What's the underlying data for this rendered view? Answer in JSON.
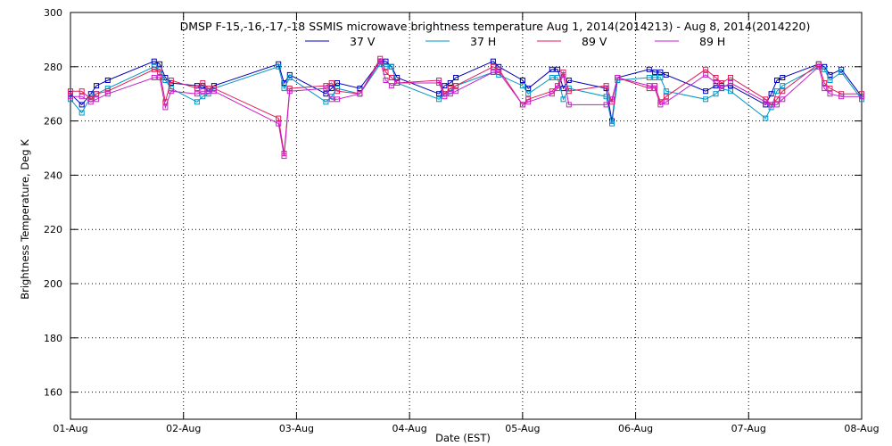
{
  "chart_data": {
    "type": "line",
    "title": "DMSP F-15,-16,-17,-18 SSMIS microwave brightness temperature Aug  1, 2014(2014213) - Aug  8, 2014(2014220)",
    "xlabel": "Date (EST)",
    "ylabel": "Brightness Temperature, Deg K",
    "xlim": [
      0,
      7
    ],
    "ylim": [
      150,
      300
    ],
    "grid": true,
    "legend_position": "top-center",
    "x_tick_labels": [
      "01-Aug",
      "02-Aug",
      "03-Aug",
      "04-Aug",
      "05-Aug",
      "06-Aug",
      "07-Aug",
      "08-Aug"
    ],
    "y_ticks": [
      160,
      180,
      200,
      220,
      240,
      260,
      280,
      300
    ],
    "series": [
      {
        "name": "37 V",
        "color": "#0000b4",
        "x": [
          0.0,
          0.1,
          0.18,
          0.23,
          0.33,
          0.74,
          0.79,
          0.84,
          0.89,
          1.12,
          1.17,
          1.22,
          1.27,
          1.84,
          1.89,
          1.94,
          2.26,
          2.31,
          2.36,
          2.56,
          2.74,
          2.79,
          2.84,
          2.89,
          3.26,
          3.31,
          3.36,
          3.41,
          3.74,
          3.79,
          4.0,
          4.05,
          4.26,
          4.31,
          4.36,
          4.41,
          4.74,
          4.79,
          4.84,
          5.12,
          5.17,
          5.22,
          5.27,
          5.62,
          5.71,
          5.76,
          5.84,
          6.15,
          6.2,
          6.25,
          6.3,
          6.62,
          6.67,
          6.72,
          6.82,
          7.0
        ],
        "values": [
          270,
          266,
          270,
          273,
          275,
          282,
          281,
          276,
          274,
          273,
          273,
          271,
          273,
          281,
          274,
          277,
          270,
          272,
          274,
          272,
          282,
          282,
          280,
          276,
          270,
          273,
          274,
          276,
          282,
          280,
          275,
          272,
          279,
          279,
          272,
          275,
          272,
          260,
          276,
          279,
          278,
          278,
          277,
          271,
          273,
          273,
          273,
          266,
          270,
          275,
          276,
          281,
          280,
          277,
          279,
          269
        ]
      },
      {
        "name": "37 H",
        "color": "#0096c8",
        "x": [
          0.0,
          0.1,
          0.18,
          0.23,
          0.33,
          0.74,
          0.79,
          0.84,
          0.89,
          1.12,
          1.17,
          1.22,
          1.27,
          1.84,
          1.89,
          1.94,
          2.26,
          2.31,
          2.36,
          2.56,
          2.74,
          2.79,
          2.84,
          2.89,
          3.26,
          3.31,
          3.36,
          3.41,
          3.74,
          3.79,
          4.0,
          4.05,
          4.26,
          4.31,
          4.36,
          4.41,
          4.74,
          4.79,
          4.84,
          5.12,
          5.17,
          5.22,
          5.27,
          5.62,
          5.71,
          5.76,
          5.84,
          6.15,
          6.2,
          6.25,
          6.3,
          6.62,
          6.67,
          6.72,
          6.82,
          7.0
        ],
        "values": [
          268,
          263,
          269,
          270,
          272,
          280,
          279,
          275,
          272,
          267,
          269,
          270,
          272,
          280,
          272,
          276,
          267,
          269,
          272,
          270,
          281,
          280,
          280,
          274,
          268,
          270,
          271,
          273,
          278,
          277,
          273,
          270,
          276,
          276,
          268,
          272,
          269,
          259,
          275,
          276,
          276,
          276,
          271,
          268,
          270,
          272,
          271,
          261,
          265,
          271,
          273,
          280,
          279,
          275,
          278,
          268
        ]
      },
      {
        "name": "89 V",
        "color": "#dc1e5a",
        "x": [
          0.0,
          0.1,
          0.18,
          0.23,
          0.33,
          0.74,
          0.79,
          0.84,
          0.89,
          1.12,
          1.17,
          1.22,
          1.27,
          1.84,
          1.89,
          1.94,
          2.26,
          2.31,
          2.36,
          2.56,
          2.74,
          2.79,
          2.84,
          2.89,
          3.26,
          3.31,
          3.36,
          3.41,
          3.74,
          3.79,
          4.0,
          4.05,
          4.26,
          4.31,
          4.36,
          4.41,
          4.74,
          4.79,
          4.84,
          5.12,
          5.17,
          5.22,
          5.27,
          5.62,
          5.71,
          5.76,
          5.84,
          6.15,
          6.2,
          6.25,
          6.3,
          6.62,
          6.67,
          6.72,
          6.82,
          7.0
        ],
        "values": [
          271,
          271,
          268,
          270,
          271,
          279,
          278,
          267,
          275,
          272,
          274,
          272,
          272,
          261,
          248,
          272,
          273,
          274,
          271,
          270,
          283,
          278,
          276,
          274,
          275,
          270,
          272,
          273,
          280,
          279,
          266,
          268,
          271,
          273,
          278,
          271,
          273,
          267,
          276,
          272,
          273,
          267,
          269,
          279,
          276,
          274,
          276,
          268,
          266,
          268,
          271,
          281,
          274,
          272,
          270,
          270
        ]
      },
      {
        "name": "89 H",
        "color": "#c81ec8",
        "x": [
          0.0,
          0.1,
          0.18,
          0.23,
          0.33,
          0.74,
          0.79,
          0.84,
          0.89,
          1.12,
          1.17,
          1.22,
          1.27,
          1.84,
          1.89,
          1.94,
          2.26,
          2.31,
          2.36,
          2.56,
          2.74,
          2.79,
          2.84,
          2.89,
          3.26,
          3.31,
          3.36,
          3.41,
          3.74,
          3.79,
          4.0,
          4.05,
          4.26,
          4.31,
          4.36,
          4.41,
          4.74,
          4.79,
          4.84,
          5.12,
          5.17,
          5.22,
          5.27,
          5.62,
          5.71,
          5.76,
          5.84,
          6.15,
          6.2,
          6.25,
          6.3,
          6.62,
          6.67,
          6.72,
          6.82,
          7.0
        ],
        "values": [
          269,
          269,
          267,
          268,
          270,
          276,
          276,
          265,
          271,
          270,
          271,
          271,
          271,
          259,
          247,
          271,
          272,
          268,
          268,
          270,
          282,
          275,
          273,
          274,
          274,
          269,
          270,
          271,
          278,
          278,
          266,
          267,
          270,
          272,
          277,
          266,
          266,
          268,
          276,
          273,
          272,
          266,
          267,
          277,
          274,
          272,
          274,
          267,
          266,
          266,
          268,
          280,
          272,
          270,
          269,
          269
        ]
      }
    ]
  }
}
